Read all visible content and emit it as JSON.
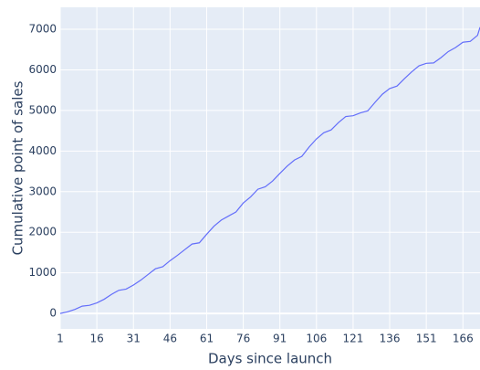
{
  "chart_data": {
    "type": "line",
    "x_label": "Days since launch",
    "y_label": "Cumulative point of sales",
    "x": [
      1,
      4,
      7,
      10,
      13,
      16,
      19,
      22,
      25,
      28,
      31,
      34,
      37,
      40,
      43,
      46,
      49,
      52,
      55,
      58,
      61,
      64,
      67,
      70,
      73,
      76,
      79,
      82,
      85,
      88,
      91,
      94,
      97,
      100,
      103,
      106,
      109,
      112,
      115,
      118,
      121,
      124,
      127,
      130,
      133,
      136,
      139,
      142,
      145,
      148,
      151,
      154,
      157,
      160,
      163,
      166,
      169,
      172,
      173
    ],
    "series": [
      {
        "color": "#636efa",
        "values": [
          0,
          40,
          100,
          180,
          200,
          260,
          350,
          470,
          570,
          600,
          700,
          820,
          960,
          1100,
          1150,
          1300,
          1430,
          1570,
          1710,
          1740,
          1950,
          2150,
          2300,
          2400,
          2500,
          2720,
          2870,
          3060,
          3120,
          3260,
          3450,
          3630,
          3780,
          3870,
          4100,
          4300,
          4450,
          4520,
          4700,
          4850,
          4870,
          4940,
          4990,
          5200,
          5400,
          5540,
          5600,
          5780,
          5950,
          6100,
          6160,
          6170,
          6300,
          6450,
          6550,
          6680,
          6700,
          6850,
          7050
        ]
      }
    ],
    "xlim": [
      1,
      173
    ],
    "ylim": [
      -380,
      7540
    ],
    "xticks": [
      1,
      16,
      31,
      46,
      61,
      76,
      91,
      106,
      121,
      136,
      151,
      166
    ],
    "yticks": [
      0,
      1000,
      2000,
      3000,
      4000,
      5000,
      6000,
      7000
    ],
    "grid": true
  }
}
